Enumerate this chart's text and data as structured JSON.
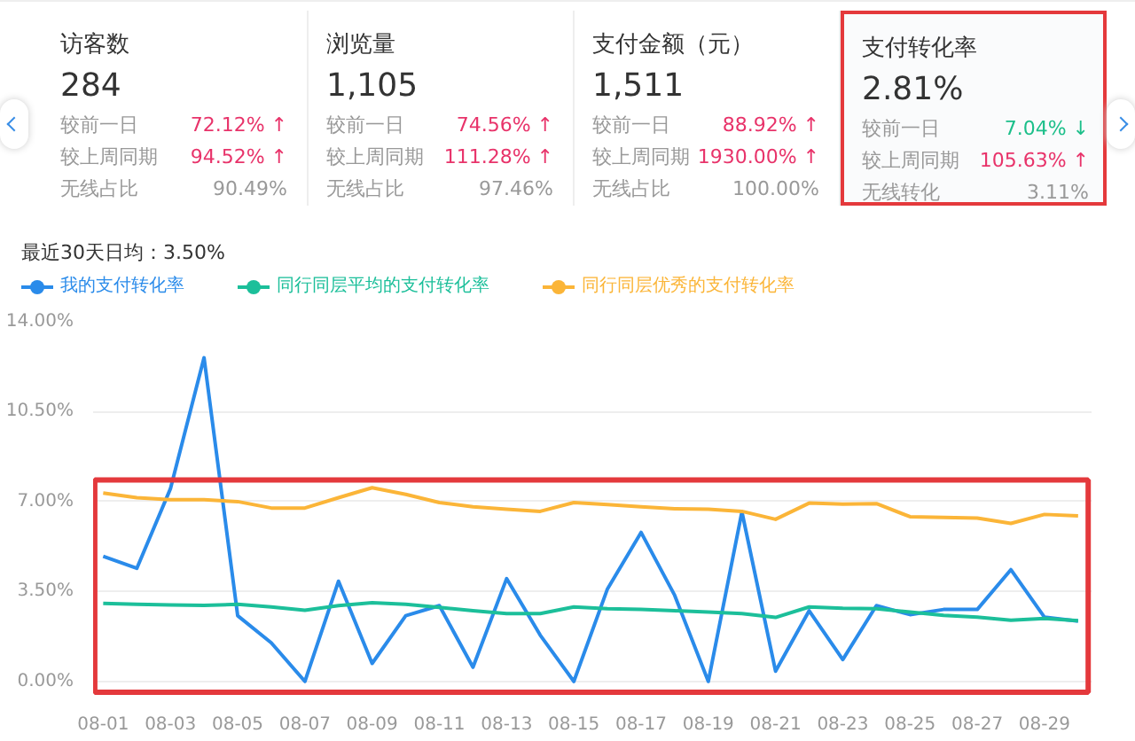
{
  "chart_data": [
    {
      "type": "other",
      "annotations": [
        "访客数",
        "284",
        "较前一日",
        "72.12% ↑",
        "较上周同期",
        "94.52% ↑",
        "无线占比",
        "90.49%",
        "浏览量",
        "1,105",
        "较前一日",
        "74.56% ↑",
        "较上周同期",
        "111.28% ↑",
        "无线占比",
        "97.46%",
        "支付金额（元）",
        "1,511",
        "较前一日",
        "88.92% ↑",
        "较上周同期",
        "1930.00% ↑",
        "无线占比",
        "100.00%",
        "支付转化率",
        "2.81%",
        "较前一日",
        "7.04% ↓",
        "较上周同期",
        "105.63% ↑",
        "无线转化",
        "3.11%"
      ],
      "colors": [
        "#333333",
        "#333333",
        "#999999",
        "#e8336a",
        "#999999",
        "#e8336a",
        "#999999",
        "#999999",
        "#333333",
        "#333333",
        "#999999",
        "#e8336a",
        "#999999",
        "#e8336a",
        "#999999",
        "#999999",
        "#333333",
        "#333333",
        "#999999",
        "#e8336a",
        "#999999",
        "#e8336a",
        "#999999",
        "#999999",
        "#333333",
        "#333333",
        "#999999",
        "#1cbf8a",
        "#999999",
        "#e8336a",
        "#999999",
        "#999999"
      ]
    },
    {
      "type": "line",
      "title": "最近30天日均：3.50%",
      "categories": [
        "08-01",
        null,
        "08-03",
        null,
        "08-05",
        null,
        "08-07",
        null,
        "08-09",
        null,
        "08-11",
        null,
        "08-13",
        null,
        "08-15",
        null,
        "08-17",
        null,
        "08-19",
        null,
        "08-21",
        null,
        "08-23",
        null,
        "08-25",
        null,
        "08-27",
        null,
        "08-29",
        null
      ],
      "series": [
        {
          "name": "我的支付转化率",
          "color": "#2a8bea",
          "values": [
            4.87,
            4.4,
            7.5,
            12.6,
            2.56,
            1.5,
            0,
            3.9,
            0.7,
            2.56,
            2.95,
            0.55,
            4.0,
            1.8,
            0,
            3.6,
            5.8,
            3.35,
            0,
            6.6,
            0.4,
            2.75,
            0.85,
            2.95,
            2.6,
            2.8,
            2.8,
            4.35,
            2.5,
            2.35
          ]
        },
        {
          "name": "同行同层平均的支付转化率",
          "color": "#1cbf9a",
          "values": [
            3.04,
            3.0,
            2.98,
            2.96,
            3.0,
            2.9,
            2.77,
            2.95,
            3.06,
            3.0,
            2.88,
            2.75,
            2.64,
            2.64,
            2.9,
            2.83,
            2.8,
            2.75,
            2.7,
            2.64,
            2.49,
            2.9,
            2.85,
            2.83,
            2.7,
            2.57,
            2.5,
            2.38,
            2.45,
            2.36
          ]
        },
        {
          "name": "同行同层优秀的支付转化率",
          "color": "#fbb538",
          "values": [
            7.33,
            7.15,
            7.07,
            7.07,
            7.0,
            6.75,
            6.75,
            7.15,
            7.54,
            7.28,
            6.96,
            6.8,
            6.7,
            6.62,
            6.96,
            6.88,
            6.8,
            6.72,
            6.7,
            6.62,
            6.31,
            6.94,
            6.9,
            6.92,
            6.41,
            6.38,
            6.36,
            6.15,
            6.5,
            6.44
          ]
        }
      ],
      "ylim": [
        0,
        14
      ],
      "yticks": [
        {
          "value": 0,
          "label": "0.00%"
        },
        {
          "value": 3.5,
          "label": "3.50%"
        },
        {
          "value": 7,
          "label": "7.00%"
        },
        {
          "value": 10.5,
          "label": "10.50%"
        },
        {
          "value": 14,
          "label": "14.00%"
        }
      ],
      "grid": "y",
      "legend": "top left",
      "marker": "none",
      "line_style": "solid"
    }
  ]
}
